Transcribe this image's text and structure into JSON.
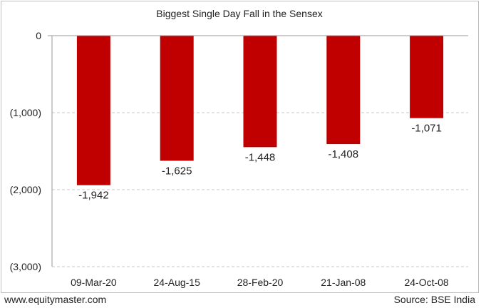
{
  "chart_data": {
    "type": "bar",
    "title": "Biggest Single Day Fall in the Sensex",
    "categories": [
      "09-Mar-20",
      "24-Aug-15",
      "28-Feb-20",
      "21-Jan-08",
      "24-Oct-08"
    ],
    "values": [
      -1942,
      -1625,
      -1448,
      -1408,
      -1071
    ],
    "data_labels": [
      "-1,942",
      "-1,625",
      "-1,448",
      "-1,408",
      "-1,071"
    ],
    "yticks": [
      0,
      -1000,
      -2000,
      -3000
    ],
    "ytick_labels": [
      "0",
      "(1,000)",
      "(2,000)",
      "(3,000)"
    ],
    "ylim": [
      -3000,
      0
    ],
    "grid": true,
    "bar_color": "#c00000",
    "xlabel": "",
    "ylabel": ""
  },
  "footer": {
    "website": "www.equitymaster.com",
    "source": "Source: BSE India"
  }
}
